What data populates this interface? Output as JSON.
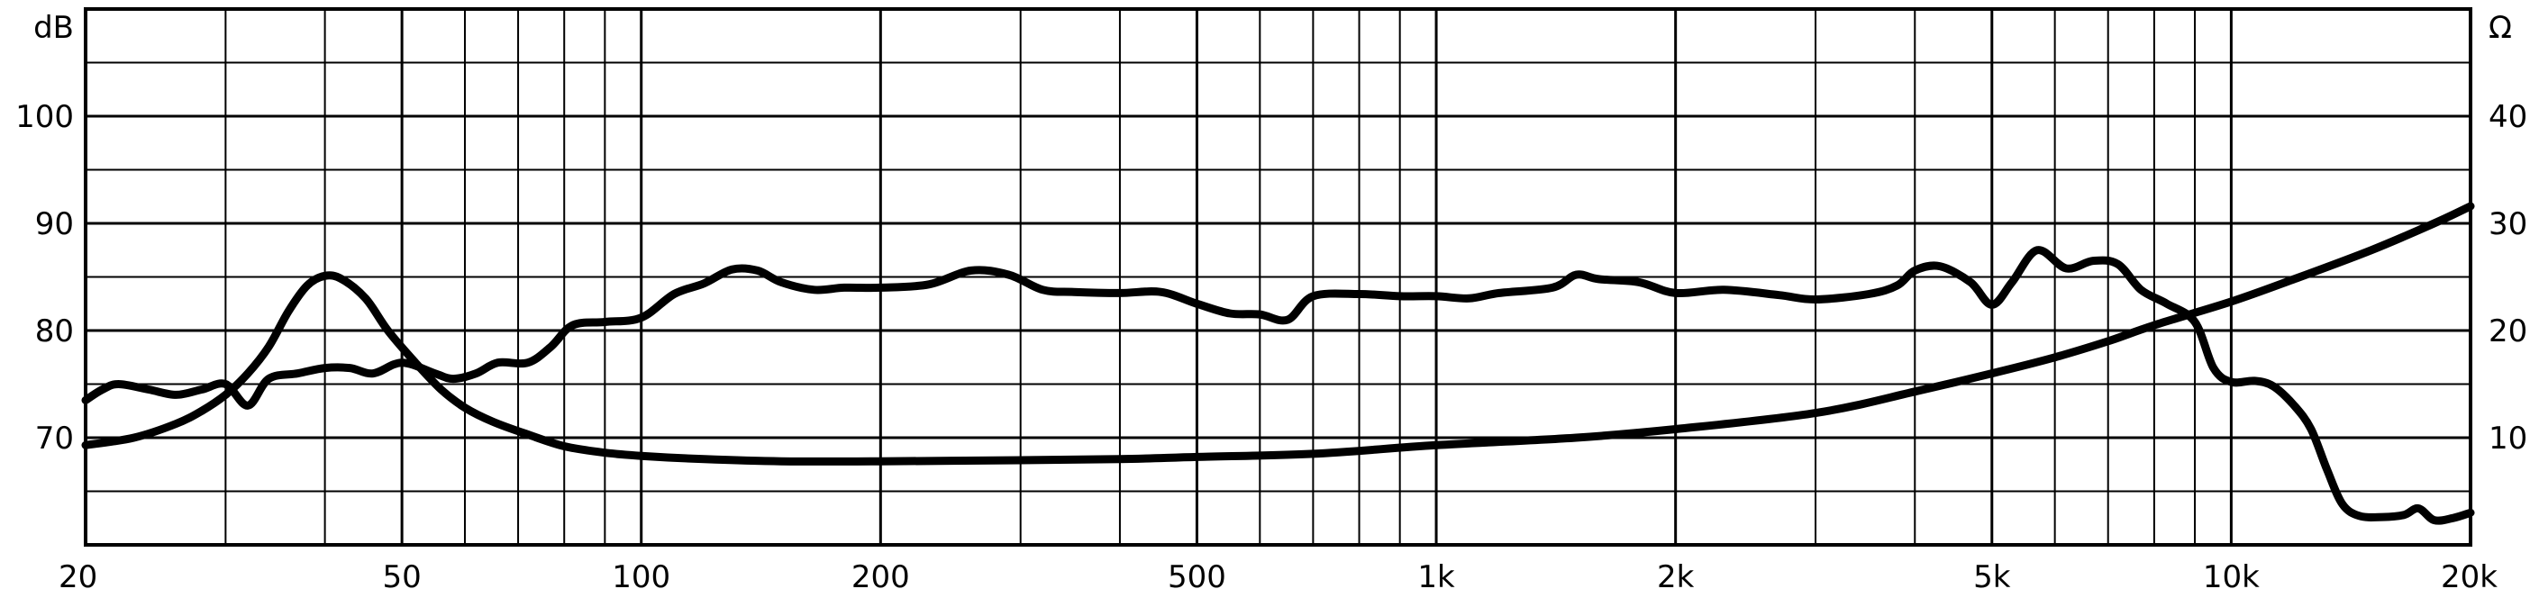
{
  "chart_data": {
    "type": "line",
    "x_scale": "log",
    "xlim": [
      20,
      20000
    ],
    "y_left": {
      "unit_label": "dB",
      "ylim": [
        60,
        110
      ],
      "ticks": [
        70,
        80,
        90,
        100
      ],
      "tick_labels": [
        "70",
        "80",
        "90",
        "100"
      ]
    },
    "y_right": {
      "unit_label": "Ω",
      "ylim": [
        0,
        50
      ],
      "ticks": [
        10,
        20,
        30,
        40
      ],
      "tick_labels": [
        "10",
        "20",
        "30",
        "40"
      ]
    },
    "x_ticks": [
      20,
      50,
      100,
      200,
      500,
      1000,
      2000,
      5000,
      10000,
      20000
    ],
    "x_tick_labels": [
      "20",
      "50",
      "100",
      "200",
      "500",
      "1k",
      "2k",
      "5k",
      "10k",
      "20k"
    ],
    "grid": true,
    "series": [
      {
        "axis": "left",
        "values": [
          [
            20,
            73.5
          ],
          [
            21,
            74.5
          ],
          [
            22,
            75
          ],
          [
            24,
            74.5
          ],
          [
            26,
            74
          ],
          [
            28,
            74.5
          ],
          [
            30,
            75
          ],
          [
            32,
            73
          ],
          [
            34,
            75.5
          ],
          [
            37,
            76
          ],
          [
            40,
            76.5
          ],
          [
            43,
            76.5
          ],
          [
            46,
            76
          ],
          [
            50,
            77
          ],
          [
            55,
            76
          ],
          [
            58,
            75.5
          ],
          [
            62,
            76
          ],
          [
            66,
            77
          ],
          [
            72,
            77
          ],
          [
            77,
            78.5
          ],
          [
            82,
            80.5
          ],
          [
            90,
            80.8
          ],
          [
            100,
            81.2
          ],
          [
            110,
            83.4
          ],
          [
            120,
            84.4
          ],
          [
            130,
            85.7
          ],
          [
            140,
            85.6
          ],
          [
            150,
            84.5
          ],
          [
            165,
            83.8
          ],
          [
            180,
            84
          ],
          [
            200,
            84
          ],
          [
            230,
            84.3
          ],
          [
            260,
            85.6
          ],
          [
            290,
            85.2
          ],
          [
            320,
            83.8
          ],
          [
            350,
            83.6
          ],
          [
            400,
            83.5
          ],
          [
            450,
            83.6
          ],
          [
            500,
            82.5
          ],
          [
            550,
            81.6
          ],
          [
            600,
            81.5
          ],
          [
            650,
            81
          ],
          [
            700,
            83.2
          ],
          [
            800,
            83.4
          ],
          [
            900,
            83.2
          ],
          [
            1000,
            83.2
          ],
          [
            1100,
            83
          ],
          [
            1200,
            83.5
          ],
          [
            1400,
            84
          ],
          [
            1500,
            85.2
          ],
          [
            1600,
            84.8
          ],
          [
            1800,
            84.5
          ],
          [
            2000,
            83.5
          ],
          [
            2300,
            83.8
          ],
          [
            2700,
            83.3
          ],
          [
            3000,
            82.9
          ],
          [
            3500,
            83.4
          ],
          [
            3800,
            84.2
          ],
          [
            4000,
            85.6
          ],
          [
            4300,
            86
          ],
          [
            4700,
            84.5
          ],
          [
            5000,
            82.4
          ],
          [
            5300,
            84.5
          ],
          [
            5700,
            87.5
          ],
          [
            6200,
            85.8
          ],
          [
            6700,
            86.5
          ],
          [
            7200,
            86.2
          ],
          [
            7700,
            83.8
          ],
          [
            8300,
            82.5
          ],
          [
            9000,
            80.8
          ],
          [
            9500,
            76.5
          ],
          [
            10000,
            75.2
          ],
          [
            10700,
            75.3
          ],
          [
            11300,
            74.8
          ],
          [
            12000,
            73
          ],
          [
            12600,
            70.8
          ],
          [
            13200,
            67
          ],
          [
            13800,
            63.8
          ],
          [
            14500,
            62.7
          ],
          [
            15500,
            62.6
          ],
          [
            16500,
            62.8
          ],
          [
            17200,
            63.4
          ],
          [
            18000,
            62.3
          ],
          [
            19000,
            62.5
          ],
          [
            20000,
            63
          ]
        ]
      },
      {
        "axis": "right",
        "values": [
          [
            20,
            9.3
          ],
          [
            23,
            10
          ],
          [
            26,
            11.3
          ],
          [
            28,
            12.5
          ],
          [
            30,
            14
          ],
          [
            32,
            16
          ],
          [
            34,
            18.5
          ],
          [
            36,
            21.8
          ],
          [
            38,
            24.2
          ],
          [
            40,
            25.1
          ],
          [
            42,
            24.8
          ],
          [
            45,
            23
          ],
          [
            48,
            20
          ],
          [
            52,
            17
          ],
          [
            56,
            14.5
          ],
          [
            60,
            12.8
          ],
          [
            65,
            11.5
          ],
          [
            72,
            10.3
          ],
          [
            80,
            9.2
          ],
          [
            90,
            8.6
          ],
          [
            100,
            8.3
          ],
          [
            120,
            8
          ],
          [
            150,
            7.8
          ],
          [
            200,
            7.8
          ],
          [
            300,
            7.9
          ],
          [
            400,
            8
          ],
          [
            500,
            8.2
          ],
          [
            700,
            8.5
          ],
          [
            1000,
            9.3
          ],
          [
            1500,
            10
          ],
          [
            2000,
            10.8
          ],
          [
            3000,
            12.3
          ],
          [
            4000,
            14.3
          ],
          [
            5000,
            16
          ],
          [
            6000,
            17.5
          ],
          [
            7000,
            19
          ],
          [
            8000,
            20.5
          ],
          [
            10000,
            22.7
          ],
          [
            12000,
            24.8
          ],
          [
            15000,
            27.5
          ],
          [
            18000,
            30
          ],
          [
            20000,
            31.6
          ]
        ]
      }
    ]
  }
}
